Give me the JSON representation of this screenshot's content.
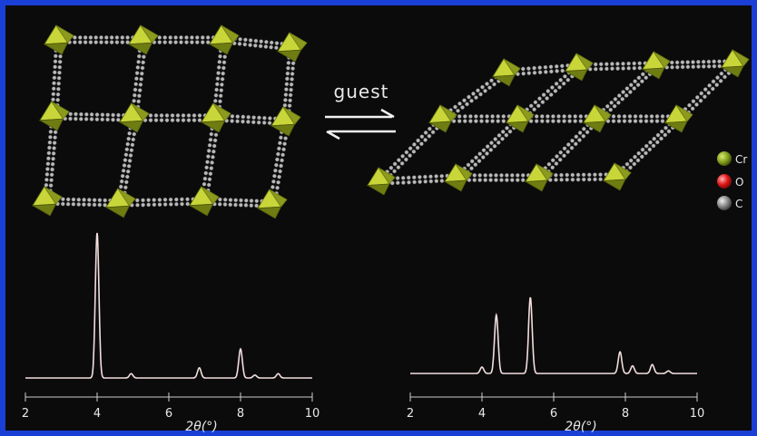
{
  "arrow_label": "guest",
  "legend": [
    {
      "label": "Cr",
      "color": "#7f9a1a"
    },
    {
      "label": "O",
      "color": "#e01818"
    },
    {
      "label": "C",
      "color": "#8a8a8a"
    }
  ],
  "colors": {
    "frame": "#1a3fd6",
    "background": "#0b0b0c",
    "node": "#a9b626",
    "linker": "#b9b9b9",
    "trace": "#f4dede"
  },
  "chart_data": [
    {
      "type": "line",
      "xlabel": "2θ(°)",
      "xlim": [
        2,
        10
      ],
      "xticks": [
        "2",
        "4",
        "6",
        "8",
        "10"
      ],
      "peaks": [
        [
          4.0,
          1.0
        ],
        [
          4.95,
          0.03
        ],
        [
          6.85,
          0.07
        ],
        [
          8.0,
          0.2
        ],
        [
          8.4,
          0.02
        ],
        [
          9.05,
          0.03
        ]
      ]
    },
    {
      "type": "line",
      "xlabel": "2θ(°)",
      "xlim": [
        2,
        10
      ],
      "xticks": [
        "2",
        "4",
        "6",
        "8",
        "10"
      ],
      "peaks": [
        [
          4.0,
          0.05
        ],
        [
          4.4,
          0.46
        ],
        [
          5.35,
          0.6
        ],
        [
          7.85,
          0.17
        ],
        [
          8.2,
          0.06
        ],
        [
          8.75,
          0.07
        ],
        [
          9.2,
          0.02
        ]
      ]
    }
  ]
}
